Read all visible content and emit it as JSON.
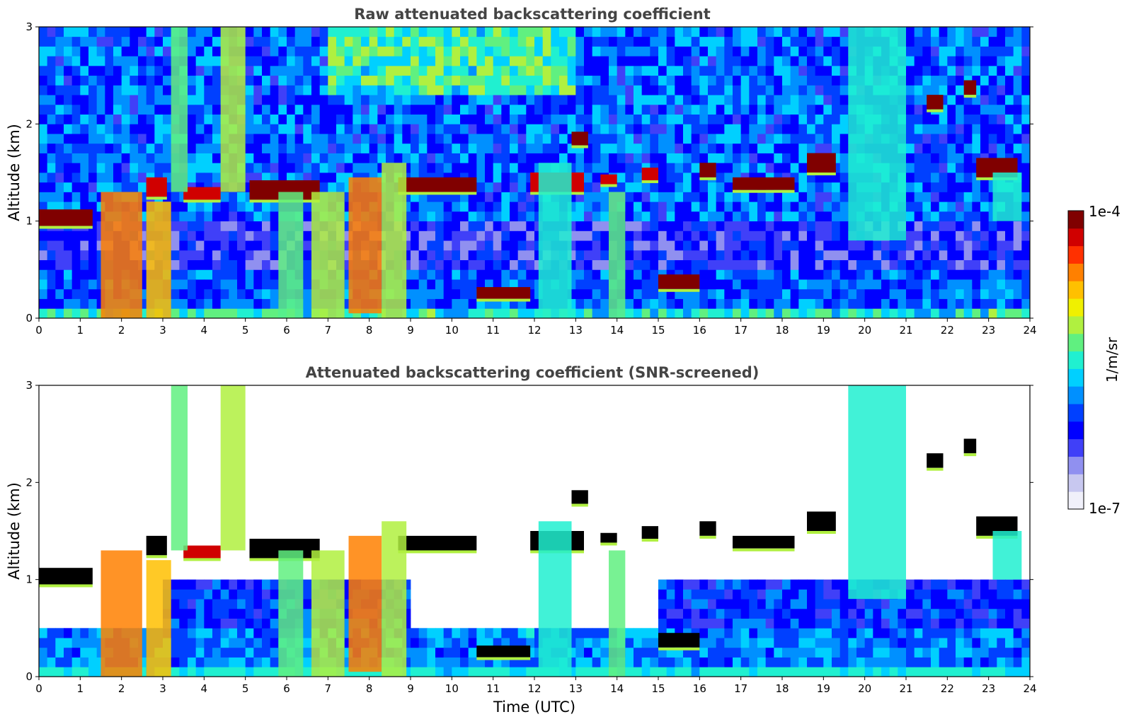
{
  "chart_data": [
    {
      "type": "heatmap",
      "title": "Raw attenuated backscattering coefficient",
      "xlabel": "",
      "ylabel": "Altitude (km)",
      "xlim": [
        0,
        24
      ],
      "ylim": [
        0,
        3
      ],
      "xticks": [
        "0",
        "1",
        "2",
        "3",
        "4",
        "5",
        "6",
        "7",
        "8",
        "9",
        "10",
        "11",
        "12",
        "13",
        "14",
        "15",
        "16",
        "17",
        "18",
        "19",
        "20",
        "21",
        "22",
        "23",
        "24"
      ],
      "yticks": [
        "0",
        "1",
        "2",
        "3"
      ],
      "screened": false,
      "features": [
        {
          "kind": "layer",
          "t0": 0.0,
          "t1": 1.3,
          "z0": 0.95,
          "z1": 1.12,
          "level": 1.0
        },
        {
          "kind": "layer",
          "t0": 2.6,
          "t1": 3.1,
          "z0": 1.25,
          "z1": 1.45,
          "level": 0.95
        },
        {
          "kind": "layer",
          "t0": 3.5,
          "t1": 4.4,
          "z0": 1.22,
          "z1": 1.35,
          "level": 0.92
        },
        {
          "kind": "layer",
          "t0": 5.1,
          "t1": 6.8,
          "z0": 1.22,
          "z1": 1.42,
          "level": 1.0
        },
        {
          "kind": "layer",
          "t0": 8.7,
          "t1": 10.6,
          "z0": 1.3,
          "z1": 1.45,
          "level": 1.0
        },
        {
          "kind": "layer",
          "t0": 10.6,
          "t1": 11.9,
          "z0": 0.2,
          "z1": 0.32,
          "level": 1.0
        },
        {
          "kind": "layer",
          "t0": 11.9,
          "t1": 13.2,
          "z0": 1.3,
          "z1": 1.5,
          "level": 0.95
        },
        {
          "kind": "layer",
          "t0": 12.9,
          "t1": 13.3,
          "z0": 1.78,
          "z1": 1.92,
          "level": 1.0
        },
        {
          "kind": "layer",
          "t0": 13.6,
          "t1": 14.0,
          "z0": 1.38,
          "z1": 1.48,
          "level": 0.95
        },
        {
          "kind": "layer",
          "t0": 14.6,
          "t1": 15.0,
          "z0": 1.42,
          "z1": 1.55,
          "level": 0.95
        },
        {
          "kind": "layer",
          "t0": 15.0,
          "t1": 16.0,
          "z0": 0.3,
          "z1": 0.45,
          "level": 1.0
        },
        {
          "kind": "layer",
          "t0": 16.0,
          "t1": 16.4,
          "z0": 1.45,
          "z1": 1.6,
          "level": 1.0
        },
        {
          "kind": "layer",
          "t0": 16.8,
          "t1": 18.3,
          "z0": 1.32,
          "z1": 1.45,
          "level": 1.0
        },
        {
          "kind": "layer",
          "t0": 18.6,
          "t1": 19.3,
          "z0": 1.5,
          "z1": 1.7,
          "level": 1.0
        },
        {
          "kind": "layer",
          "t0": 21.5,
          "t1": 21.9,
          "z0": 2.15,
          "z1": 2.3,
          "level": 1.0
        },
        {
          "kind": "layer",
          "t0": 22.4,
          "t1": 22.7,
          "z0": 2.3,
          "z1": 2.45,
          "level": 1.0
        },
        {
          "kind": "layer",
          "t0": 22.7,
          "t1": 23.7,
          "z0": 1.45,
          "z1": 1.65,
          "level": 1.0
        },
        {
          "kind": "column",
          "t0": 1.5,
          "t1": 2.5,
          "z0": 0.0,
          "z1": 1.3,
          "level": 0.8
        },
        {
          "kind": "column",
          "t0": 2.6,
          "t1": 3.2,
          "z0": 0.0,
          "z1": 1.2,
          "level": 0.75
        },
        {
          "kind": "column",
          "t0": 3.2,
          "t1": 3.6,
          "z0": 1.3,
          "z1": 3.0,
          "level": 0.55
        },
        {
          "kind": "column",
          "t0": 4.4,
          "t1": 5.0,
          "z0": 1.3,
          "z1": 3.0,
          "level": 0.6
        },
        {
          "kind": "column",
          "t0": 5.8,
          "t1": 6.4,
          "z0": 0.0,
          "z1": 1.3,
          "level": 0.55
        },
        {
          "kind": "column",
          "t0": 6.6,
          "t1": 7.4,
          "z0": 0.0,
          "z1": 1.3,
          "level": 0.65
        },
        {
          "kind": "column",
          "t0": 7.5,
          "t1": 8.3,
          "z0": 0.05,
          "z1": 1.45,
          "level": 0.82
        },
        {
          "kind": "column",
          "t0": 8.3,
          "t1": 8.9,
          "z0": 0.0,
          "z1": 1.6,
          "level": 0.65
        },
        {
          "kind": "column",
          "t0": 12.1,
          "t1": 12.9,
          "z0": 0.0,
          "z1": 1.6,
          "level": 0.5
        },
        {
          "kind": "column",
          "t0": 13.8,
          "t1": 14.2,
          "z0": 0.0,
          "z1": 1.3,
          "level": 0.55
        },
        {
          "kind": "column",
          "t0": 19.6,
          "t1": 21.0,
          "z0": 0.8,
          "z1": 3.0,
          "level": 0.5
        },
        {
          "kind": "column",
          "t0": 23.1,
          "t1": 23.8,
          "z0": 1.0,
          "z1": 1.5,
          "level": 0.5
        }
      ]
    },
    {
      "type": "heatmap",
      "title": "Attenuated backscattering coefficient (SNR-screened)",
      "xlabel": "Time (UTC)",
      "ylabel": "Altitude (km)",
      "xlim": [
        0,
        24
      ],
      "ylim": [
        0,
        3
      ],
      "xticks": [
        "0",
        "1",
        "2",
        "3",
        "4",
        "5",
        "6",
        "7",
        "8",
        "9",
        "10",
        "11",
        "12",
        "13",
        "14",
        "15",
        "16",
        "17",
        "18",
        "19",
        "20",
        "21",
        "22",
        "23",
        "24"
      ],
      "yticks": [
        "0",
        "1",
        "2",
        "3"
      ],
      "screened": true,
      "features": [
        {
          "kind": "layer",
          "t0": 0.0,
          "t1": 1.3,
          "z0": 0.95,
          "z1": 1.12,
          "level": 1.0
        },
        {
          "kind": "layer",
          "t0": 2.6,
          "t1": 3.1,
          "z0": 1.25,
          "z1": 1.45,
          "level": 0.95
        },
        {
          "kind": "layer",
          "t0": 3.5,
          "t1": 4.4,
          "z0": 1.22,
          "z1": 1.35,
          "level": 0.92
        },
        {
          "kind": "layer",
          "t0": 5.1,
          "t1": 6.8,
          "z0": 1.22,
          "z1": 1.42,
          "level": 1.0
        },
        {
          "kind": "layer",
          "t0": 8.7,
          "t1": 10.6,
          "z0": 1.3,
          "z1": 1.45,
          "level": 1.0
        },
        {
          "kind": "layer",
          "t0": 10.6,
          "t1": 11.9,
          "z0": 0.2,
          "z1": 0.32,
          "level": 1.0
        },
        {
          "kind": "layer",
          "t0": 11.9,
          "t1": 13.2,
          "z0": 1.3,
          "z1": 1.5,
          "level": 0.95
        },
        {
          "kind": "layer",
          "t0": 12.9,
          "t1": 13.3,
          "z0": 1.78,
          "z1": 1.92,
          "level": 1.0
        },
        {
          "kind": "layer",
          "t0": 13.6,
          "t1": 14.0,
          "z0": 1.38,
          "z1": 1.48,
          "level": 0.95
        },
        {
          "kind": "layer",
          "t0": 14.6,
          "t1": 15.0,
          "z0": 1.42,
          "z1": 1.55,
          "level": 0.95
        },
        {
          "kind": "layer",
          "t0": 15.0,
          "t1": 16.0,
          "z0": 0.3,
          "z1": 0.45,
          "level": 1.0
        },
        {
          "kind": "layer",
          "t0": 16.0,
          "t1": 16.4,
          "z0": 1.45,
          "z1": 1.6,
          "level": 1.0
        },
        {
          "kind": "layer",
          "t0": 16.8,
          "t1": 18.3,
          "z0": 1.32,
          "z1": 1.45,
          "level": 1.0
        },
        {
          "kind": "layer",
          "t0": 18.6,
          "t1": 19.3,
          "z0": 1.5,
          "z1": 1.7,
          "level": 1.0
        },
        {
          "kind": "layer",
          "t0": 21.5,
          "t1": 21.9,
          "z0": 2.15,
          "z1": 2.3,
          "level": 1.0
        },
        {
          "kind": "layer",
          "t0": 22.4,
          "t1": 22.7,
          "z0": 2.3,
          "z1": 2.45,
          "level": 1.0
        },
        {
          "kind": "layer",
          "t0": 22.7,
          "t1": 23.7,
          "z0": 1.45,
          "z1": 1.65,
          "level": 1.0
        },
        {
          "kind": "column",
          "t0": 1.5,
          "t1": 2.5,
          "z0": 0.0,
          "z1": 1.3,
          "level": 0.8
        },
        {
          "kind": "column",
          "t0": 2.6,
          "t1": 3.2,
          "z0": 0.0,
          "z1": 1.2,
          "level": 0.75
        },
        {
          "kind": "column",
          "t0": 3.2,
          "t1": 3.6,
          "z0": 1.3,
          "z1": 3.0,
          "level": 0.55
        },
        {
          "kind": "column",
          "t0": 4.4,
          "t1": 5.0,
          "z0": 1.3,
          "z1": 3.0,
          "level": 0.6
        },
        {
          "kind": "column",
          "t0": 5.8,
          "t1": 6.4,
          "z0": 0.0,
          "z1": 1.3,
          "level": 0.55
        },
        {
          "kind": "column",
          "t0": 6.6,
          "t1": 7.4,
          "z0": 0.0,
          "z1": 1.3,
          "level": 0.65
        },
        {
          "kind": "column",
          "t0": 7.5,
          "t1": 8.3,
          "z0": 0.05,
          "z1": 1.45,
          "level": 0.82
        },
        {
          "kind": "column",
          "t0": 8.3,
          "t1": 8.9,
          "z0": 0.0,
          "z1": 1.6,
          "level": 0.65
        },
        {
          "kind": "column",
          "t0": 12.1,
          "t1": 12.9,
          "z0": 0.0,
          "z1": 1.6,
          "level": 0.5
        },
        {
          "kind": "column",
          "t0": 13.8,
          "t1": 14.2,
          "z0": 0.0,
          "z1": 1.3,
          "level": 0.55
        },
        {
          "kind": "column",
          "t0": 19.6,
          "t1": 21.0,
          "z0": 0.8,
          "z1": 3.0,
          "level": 0.5
        },
        {
          "kind": "column",
          "t0": 23.1,
          "t1": 23.8,
          "z0": 1.0,
          "z1": 1.5,
          "level": 0.5
        }
      ]
    }
  ],
  "colorbar": {
    "max_label": "1e-4",
    "min_label": "1e-7",
    "label": "1/m/sr",
    "scale": "log",
    "colors": [
      "#f0f0fa",
      "#c8c8f0",
      "#9090f0",
      "#4040f8",
      "#0000ff",
      "#0040ff",
      "#0090ff",
      "#00d0ff",
      "#20f0d0",
      "#60f080",
      "#b0f040",
      "#f0f000",
      "#ffc000",
      "#ff8000",
      "#ff3000",
      "#d00000",
      "#800000"
    ]
  }
}
